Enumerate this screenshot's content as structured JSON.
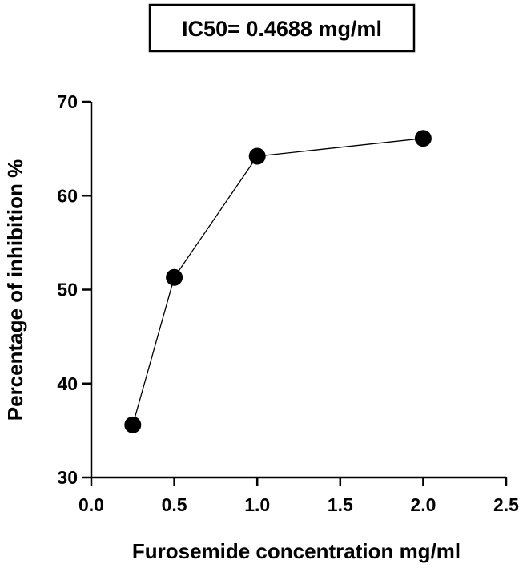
{
  "chart_data": {
    "type": "scatter",
    "title": "IC50= 0.4688 mg/ml",
    "xlabel": "Furosemide concentration mg/ml",
    "ylabel": "Percentage of inhibition %",
    "xlim": [
      0.0,
      2.5
    ],
    "ylim": [
      30,
      70
    ],
    "x_ticks": [
      "0.0",
      "0.5",
      "1.0",
      "1.5",
      "2.0",
      "2.5"
    ],
    "y_ticks": [
      "30",
      "40",
      "50",
      "60",
      "70"
    ],
    "connected": true,
    "grid": false,
    "legend": "none",
    "series": [
      {
        "x": [
          0.25,
          0.5,
          1.0,
          2.0
        ],
        "y": [
          35.6,
          51.3,
          64.2,
          66.1
        ]
      }
    ],
    "colors": {
      "marker": "#000000",
      "line": "#000000",
      "axis": "#000000",
      "background": "#ffffff"
    }
  }
}
